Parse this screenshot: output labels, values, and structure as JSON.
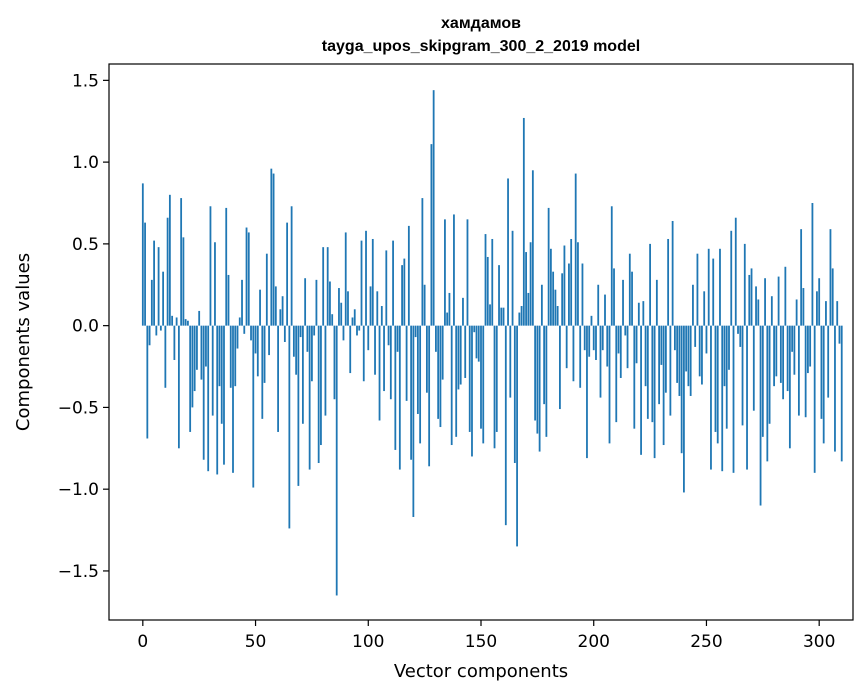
{
  "chart_data": {
    "type": "bar",
    "title_line1": "хамдамов",
    "title_line2": "tayga_upos_skipgram_300_2_2019 model",
    "xlabel": "Vector components",
    "ylabel": "Components values",
    "xlim": [
      -15,
      315
    ],
    "ylim": [
      -1.8,
      1.6
    ],
    "xticks": [
      0,
      50,
      100,
      150,
      200,
      250,
      300
    ],
    "xtick_labels": [
      "0",
      "50",
      "100",
      "150",
      "200",
      "250",
      "300"
    ],
    "yticks": [
      -1.5,
      -1.0,
      -0.5,
      0.0,
      0.5,
      1.0,
      1.5
    ],
    "ytick_labels": [
      "−1.5",
      "−1.0",
      "−0.5",
      "0.0",
      "0.5",
      "1.0",
      "1.5"
    ],
    "bar_color": "#1f77b4",
    "values": [
      0.87,
      0.63,
      -0.69,
      -0.12,
      0.28,
      0.52,
      -0.06,
      0.48,
      -0.03,
      0.33,
      -0.38,
      0.66,
      0.8,
      0.06,
      -0.21,
      0.05,
      -0.75,
      0.78,
      0.54,
      0.04,
      0.03,
      -0.65,
      -0.5,
      -0.4,
      -0.27,
      0.09,
      -0.33,
      -0.82,
      -0.25,
      -0.89,
      0.73,
      -0.55,
      0.51,
      -0.91,
      -0.37,
      -0.6,
      -0.85,
      0.72,
      0.31,
      -0.38,
      -0.9,
      -0.37,
      -0.14,
      0.05,
      0.28,
      -0.05,
      0.6,
      0.57,
      -0.09,
      -0.99,
      -0.17,
      -0.31,
      0.22,
      -0.57,
      -0.35,
      0.44,
      -0.18,
      0.96,
      0.93,
      0.24,
      -0.65,
      0.1,
      0.18,
      -0.1,
      0.63,
      -1.24,
      0.73,
      -0.19,
      -0.3,
      -0.98,
      -0.07,
      -0.6,
      0.29,
      -0.16,
      -0.88,
      -0.34,
      -0.06,
      0.28,
      -0.84,
      -0.73,
      0.48,
      -0.55,
      0.48,
      0.27,
      0.07,
      -0.45,
      -1.65,
      0.23,
      0.14,
      -0.09,
      0.57,
      0.21,
      -0.29,
      0.05,
      0.1,
      -0.06,
      -0.03,
      0.52,
      -0.34,
      0.58,
      -0.15,
      0.24,
      0.53,
      -0.3,
      0.21,
      -0.58,
      0.12,
      -0.4,
      0.46,
      -0.12,
      -0.45,
      0.52,
      -0.76,
      -0.16,
      -0.88,
      0.37,
      0.41,
      -0.46,
      0.61,
      -0.82,
      -1.17,
      -0.07,
      -0.54,
      -0.72,
      0.78,
      0.25,
      -0.41,
      -0.86,
      1.11,
      1.44,
      -0.16,
      -0.57,
      -0.62,
      -0.33,
      0.65,
      0.08,
      0.2,
      -0.73,
      0.68,
      -0.68,
      -0.39,
      -0.36,
      0.17,
      -0.32,
      0.65,
      -0.65,
      -0.8,
      -0.04,
      -0.2,
      -0.22,
      -0.63,
      -0.72,
      0.56,
      0.42,
      0.13,
      0.53,
      -0.75,
      -0.65,
      0.37,
      0.11,
      0.11,
      -1.22,
      0.9,
      -0.44,
      0.58,
      -0.84,
      -1.35,
      0.08,
      0.12,
      1.27,
      0.45,
      0.2,
      0.51,
      0.95,
      -0.58,
      -0.66,
      -0.77,
      0.25,
      -0.48,
      -0.68,
      0.72,
      0.47,
      0.33,
      0.22,
      0.12,
      -0.51,
      0.32,
      0.49,
      -0.26,
      0.38,
      0.53,
      -0.34,
      0.93,
      0.51,
      -0.38,
      0.38,
      -0.15,
      -0.81,
      -0.19,
      0.06,
      -0.15,
      -0.21,
      0.25,
      -0.44,
      -0.15,
      0.19,
      -0.25,
      -0.72,
      0.73,
      0.35,
      -0.59,
      -0.17,
      -0.32,
      0.28,
      -0.06,
      -0.26,
      0.44,
      0.33,
      -0.63,
      -0.23,
      0.14,
      -0.79,
      0.15,
      -0.37,
      -0.57,
      0.5,
      -0.59,
      -0.81,
      0.28,
      -0.48,
      -0.24,
      -0.73,
      -0.41,
      0.53,
      -0.55,
      0.64,
      -0.15,
      -0.35,
      -0.43,
      -0.78,
      -1.02,
      -0.28,
      -0.37,
      -0.43,
      0.25,
      -0.13,
      0.44,
      -0.31,
      -0.36,
      0.21,
      -0.17,
      0.47,
      -0.88,
      0.41,
      -0.65,
      -0.72,
      0.47,
      -0.89,
      -0.37,
      -0.63,
      -0.27,
      0.58,
      -0.9,
      0.66,
      -0.05,
      -0.13,
      -0.61,
      0.5,
      -0.88,
      0.31,
      0.35,
      -0.52,
      0.24,
      0.16,
      -1.1,
      -0.68,
      0.29,
      -0.83,
      -0.6,
      0.18,
      -0.37,
      -0.31,
      0.3,
      -0.35,
      -0.45,
      0.36,
      -0.4,
      -0.75,
      -0.16,
      -0.3,
      0.16,
      -0.55,
      0.59,
      0.23,
      -0.56,
      -0.29,
      -0.25,
      0.75,
      -0.9,
      0.21,
      0.29,
      -0.57,
      -0.72,
      0.15,
      -0.44,
      0.59,
      0.35,
      -0.77,
      0.15,
      -0.11,
      -0.83
    ]
  }
}
